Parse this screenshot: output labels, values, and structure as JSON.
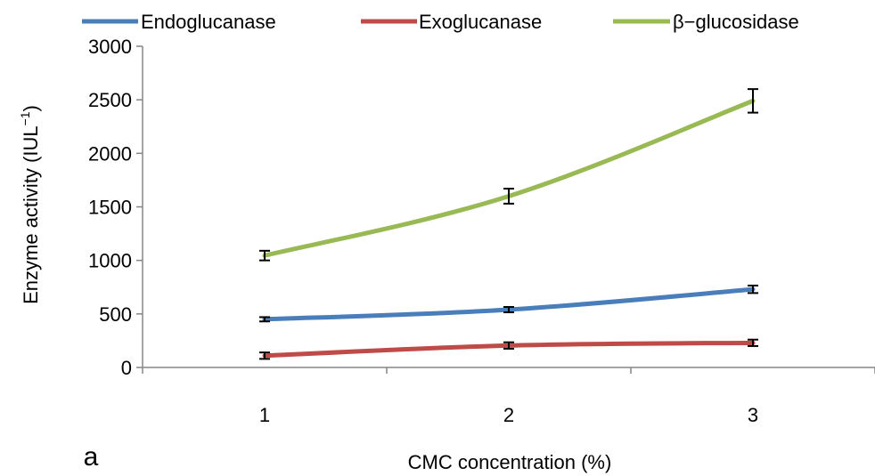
{
  "chart_data": {
    "type": "line",
    "panel_label": "a",
    "xlabel": "CMC concentration (%)",
    "ylabel_main": "Enzyme activity (IUL",
    "ylabel_sup": "−1",
    "ylabel_close": ")",
    "x": [
      1,
      2,
      3
    ],
    "x_tick_labels": [
      "1",
      "2",
      "3"
    ],
    "ylim": [
      0,
      3000
    ],
    "y_ticks": [
      0,
      500,
      1000,
      1500,
      2000,
      2500,
      3000
    ],
    "y_tick_labels": [
      "0",
      "500",
      "1000",
      "1500",
      "2000",
      "2500",
      "3000"
    ],
    "grid": false,
    "legend_position": "top",
    "series": [
      {
        "name": "Endoglucanase",
        "color": "#4a7ebb",
        "values": [
          450,
          540,
          730
        ],
        "errors": [
          20,
          25,
          35
        ]
      },
      {
        "name": "Exoglucanase",
        "color": "#be4b48",
        "values": [
          110,
          205,
          230
        ],
        "errors": [
          30,
          30,
          30
        ]
      },
      {
        "name": "β−glucosidase",
        "color": "#98b954",
        "values": [
          1045,
          1600,
          2490
        ],
        "errors": [
          45,
          70,
          110
        ]
      }
    ]
  }
}
